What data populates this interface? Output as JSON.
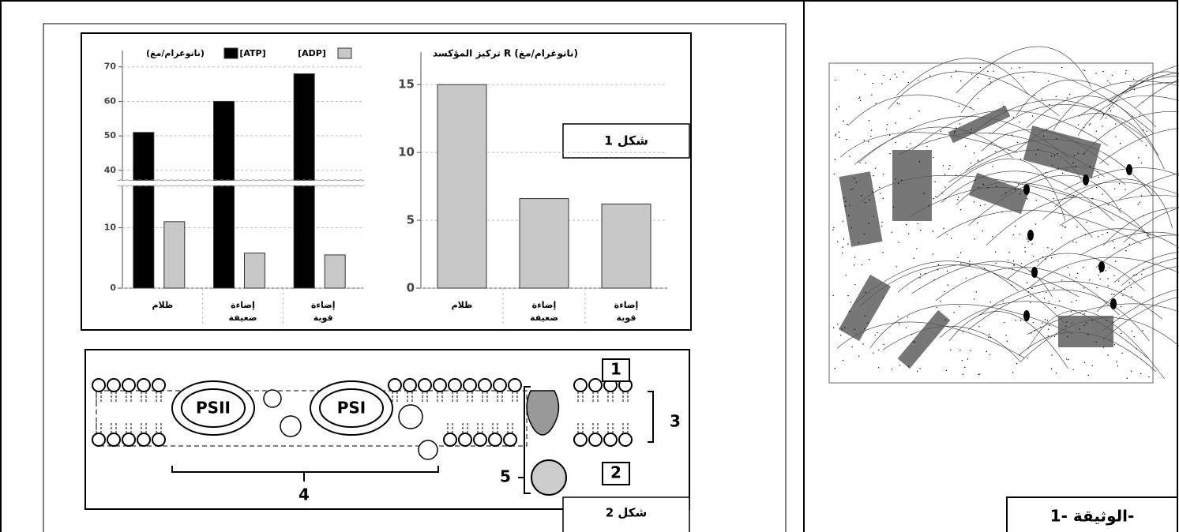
{
  "document": {
    "figure1_label": "شكل 1",
    "figure2_label": "شكل 2",
    "doc_label": "الوثيقة -1-"
  },
  "diagram": {
    "psii": "PSII",
    "psi": "PSI",
    "labels": [
      "1",
      "2",
      "3",
      "4",
      "5"
    ]
  },
  "chart_data": [
    {
      "type": "bar",
      "ylabel": "(نانوغرام/مغ)",
      "categories": [
        "ظلام",
        "إضاءة ضعيفة",
        "إضاءة قوية"
      ],
      "series": [
        {
          "name": "[ATP]",
          "color": "#000000",
          "values": [
            51,
            60,
            68
          ]
        },
        {
          "name": "[ADP]",
          "color": "#c8c8c8",
          "values": [
            11,
            5.8,
            5.5
          ]
        }
      ],
      "ylim": [
        0,
        72
      ],
      "yticks": [
        0,
        10,
        40,
        50,
        60,
        70
      ],
      "y_break": [
        17,
        37
      ],
      "grid": true
    },
    {
      "type": "bar",
      "ylabel": "تركيز المؤكسد R (نانوغرام/مغ)",
      "categories": [
        "ظلام",
        "إضاءة ضعيفة",
        "إضاءة قوية"
      ],
      "values": [
        15,
        6.6,
        6.2
      ],
      "color": "#c8c8c8",
      "ylim": [
        0,
        16.7
      ],
      "yticks": [
        0,
        5,
        10,
        15
      ],
      "grid": true
    }
  ]
}
